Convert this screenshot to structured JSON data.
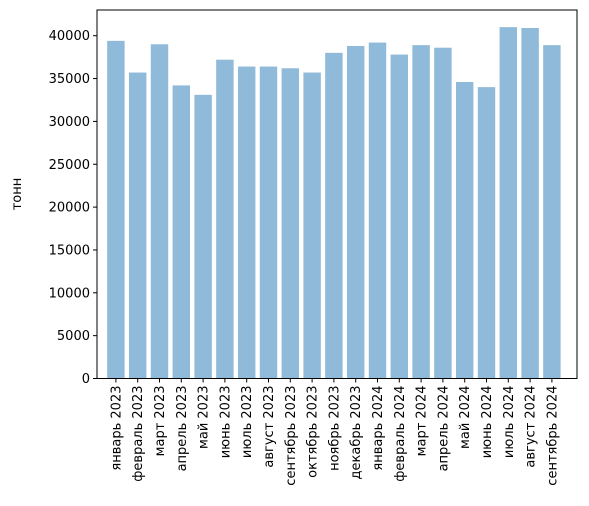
{
  "chart_data": {
    "type": "bar",
    "title": "",
    "xlabel": "",
    "ylabel": "тонн",
    "ylim": [
      0,
      43000
    ],
    "yticks": [
      0,
      5000,
      10000,
      15000,
      20000,
      25000,
      30000,
      35000,
      40000
    ],
    "grid": false,
    "bar_color": "#8fbad9",
    "categories": [
      "январь 2023",
      "февраль 2023",
      "март 2023",
      "апрель 2023",
      "май 2023",
      "июнь 2023",
      "июль 2023",
      "август 2023",
      "сентябрь 2023",
      "октябрь 2023",
      "ноябрь 2023",
      "декабрь 2023",
      "январь 2024",
      "февраль 2024",
      "март 2024",
      "апрель 2024",
      "май 2024",
      "июнь 2024",
      "июль 2024",
      "август 2024",
      "сентябрь 2024"
    ],
    "values": [
      39400,
      35700,
      39000,
      34200,
      33100,
      37200,
      36400,
      36400,
      36200,
      35700,
      38000,
      38800,
      39200,
      37800,
      38900,
      38600,
      34600,
      34000,
      41000,
      40900,
      38900
    ]
  }
}
